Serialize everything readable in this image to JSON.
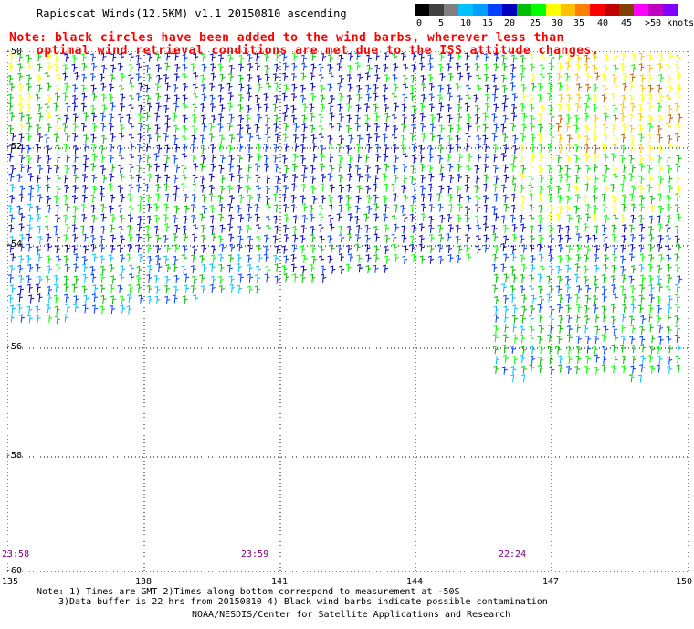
{
  "title": "Rapidscat Winds(12.5KM) v1.1 20150810 ascending",
  "note": {
    "line1": "Note: black circles have been added to the wind barbs, wherever less than",
    "line2": "optimal wind retrieval conditions are met due to the ISS attitude changes."
  },
  "colorscale": {
    "unit": "knots",
    "labels": [
      "0",
      "5",
      "10",
      "15",
      "20",
      "25",
      "30",
      "35",
      "40",
      "45",
      ">50 knots"
    ],
    "colors": [
      "#000000",
      "#404040",
      "#808080",
      "#00c0ff",
      "#00a0ff",
      "#0040ff",
      "#0000c0",
      "#00c000",
      "#00ff00",
      "#ffff00",
      "#ffc000",
      "#ff8000",
      "#ff0000",
      "#c00000",
      "#804000",
      "#ff00ff",
      "#c000c0",
      "#8000ff"
    ]
  },
  "map": {
    "lat_labels": [
      "-50",
      "-52",
      "-54",
      "-56",
      "-58",
      "-60"
    ],
    "lon_labels": [
      "135",
      "138",
      "141",
      "144",
      "147",
      "150"
    ],
    "time_labels": [
      "23:58",
      "23:59",
      "22:24"
    ]
  },
  "footer": {
    "line1": "Note: 1) Times are GMT 2)Times along bottom correspond to measurement at -50S",
    "line2": "3)Data buffer is 22 hrs from 20150810 4) Black wind barbs indicate possible contamination",
    "line3": "NOAA/NESDIS/Center for Satellite Applications and Research"
  }
}
